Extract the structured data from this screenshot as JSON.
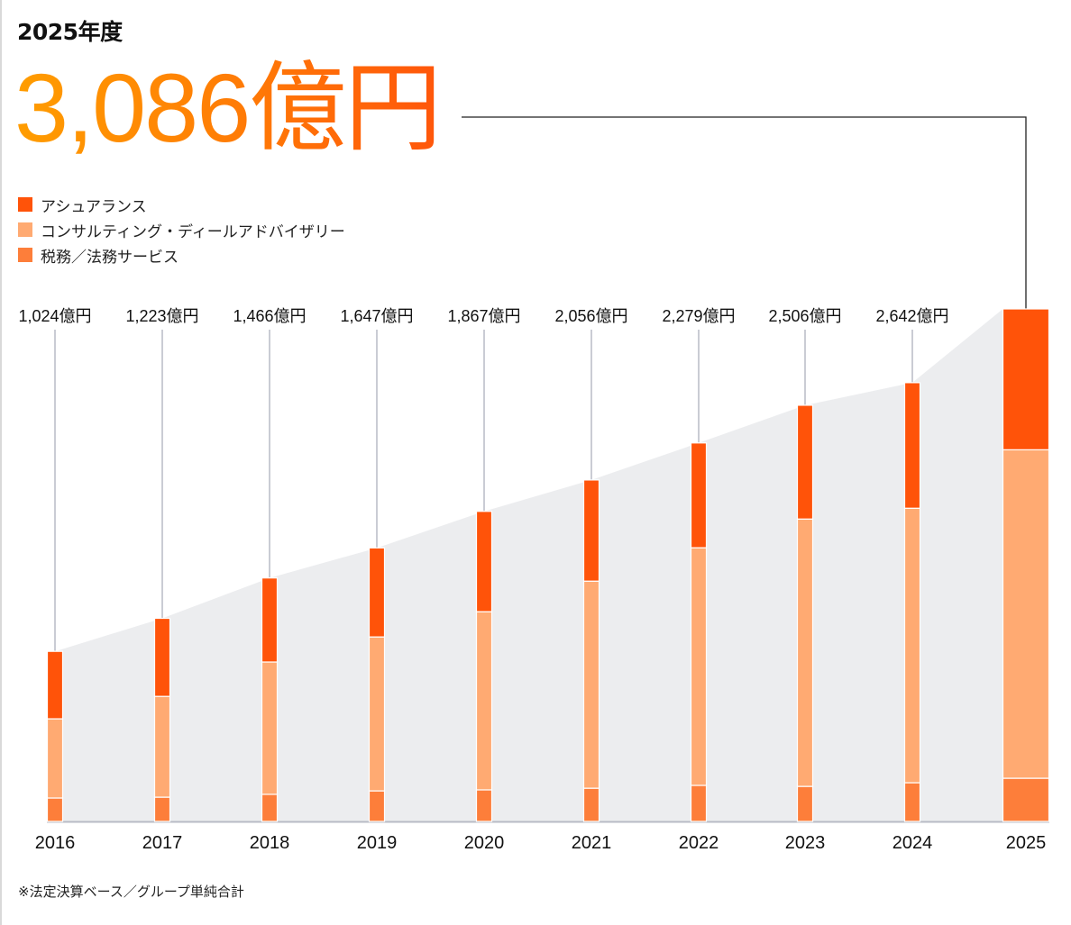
{
  "header": {
    "fiscal_year": "2025年度",
    "headline_total": "3,086億円"
  },
  "legend": [
    {
      "label": "アシュアランス",
      "color": "#FF5309"
    },
    {
      "label": "コンサルティング・ディールアドバイザリー",
      "color": "#FFAA72"
    },
    {
      "label": "税務／法務サービス",
      "color": "#FD7E3A"
    }
  ],
  "footnote": "※法定決算ベース／グループ単純合計",
  "colors": {
    "area": "#ECEDEF",
    "leader": "#B8BBC5",
    "axis": "#B8BBC5"
  },
  "chart_data": {
    "type": "bar",
    "stacked": true,
    "title": "",
    "xlabel": "",
    "ylabel": "",
    "unit": "億円",
    "categories": [
      "2016",
      "2017",
      "2018",
      "2019",
      "2020",
      "2021",
      "2022",
      "2023",
      "2024",
      "2025"
    ],
    "totals": [
      1024,
      1223,
      1466,
      1647,
      1867,
      2056,
      2279,
      2506,
      2642,
      3086
    ],
    "total_labels": [
      "1,024億円",
      "1,223億円",
      "1,466億円",
      "1,647億円",
      "1,867億円",
      "2,056億円",
      "2,279億円",
      "2,506億円",
      "2,642億円",
      ""
    ],
    "series": [
      {
        "name": "税務／法務サービス",
        "values": [
          141,
          146,
          163,
          184,
          190,
          200,
          217,
          211,
          233,
          260
        ]
      },
      {
        "name": "コンサルティング・ディールアドバイザリー",
        "values": [
          477,
          607,
          797,
          927,
          1073,
          1247,
          1431,
          1610,
          1653,
          1978
        ]
      },
      {
        "name": "アシュアランス",
        "values": [
          406,
          470,
          506,
          536,
          604,
          609,
          631,
          685,
          756,
          848
        ]
      }
    ],
    "ylim": [
      0,
      3086
    ],
    "grid": false,
    "legend_position": "top-left"
  }
}
